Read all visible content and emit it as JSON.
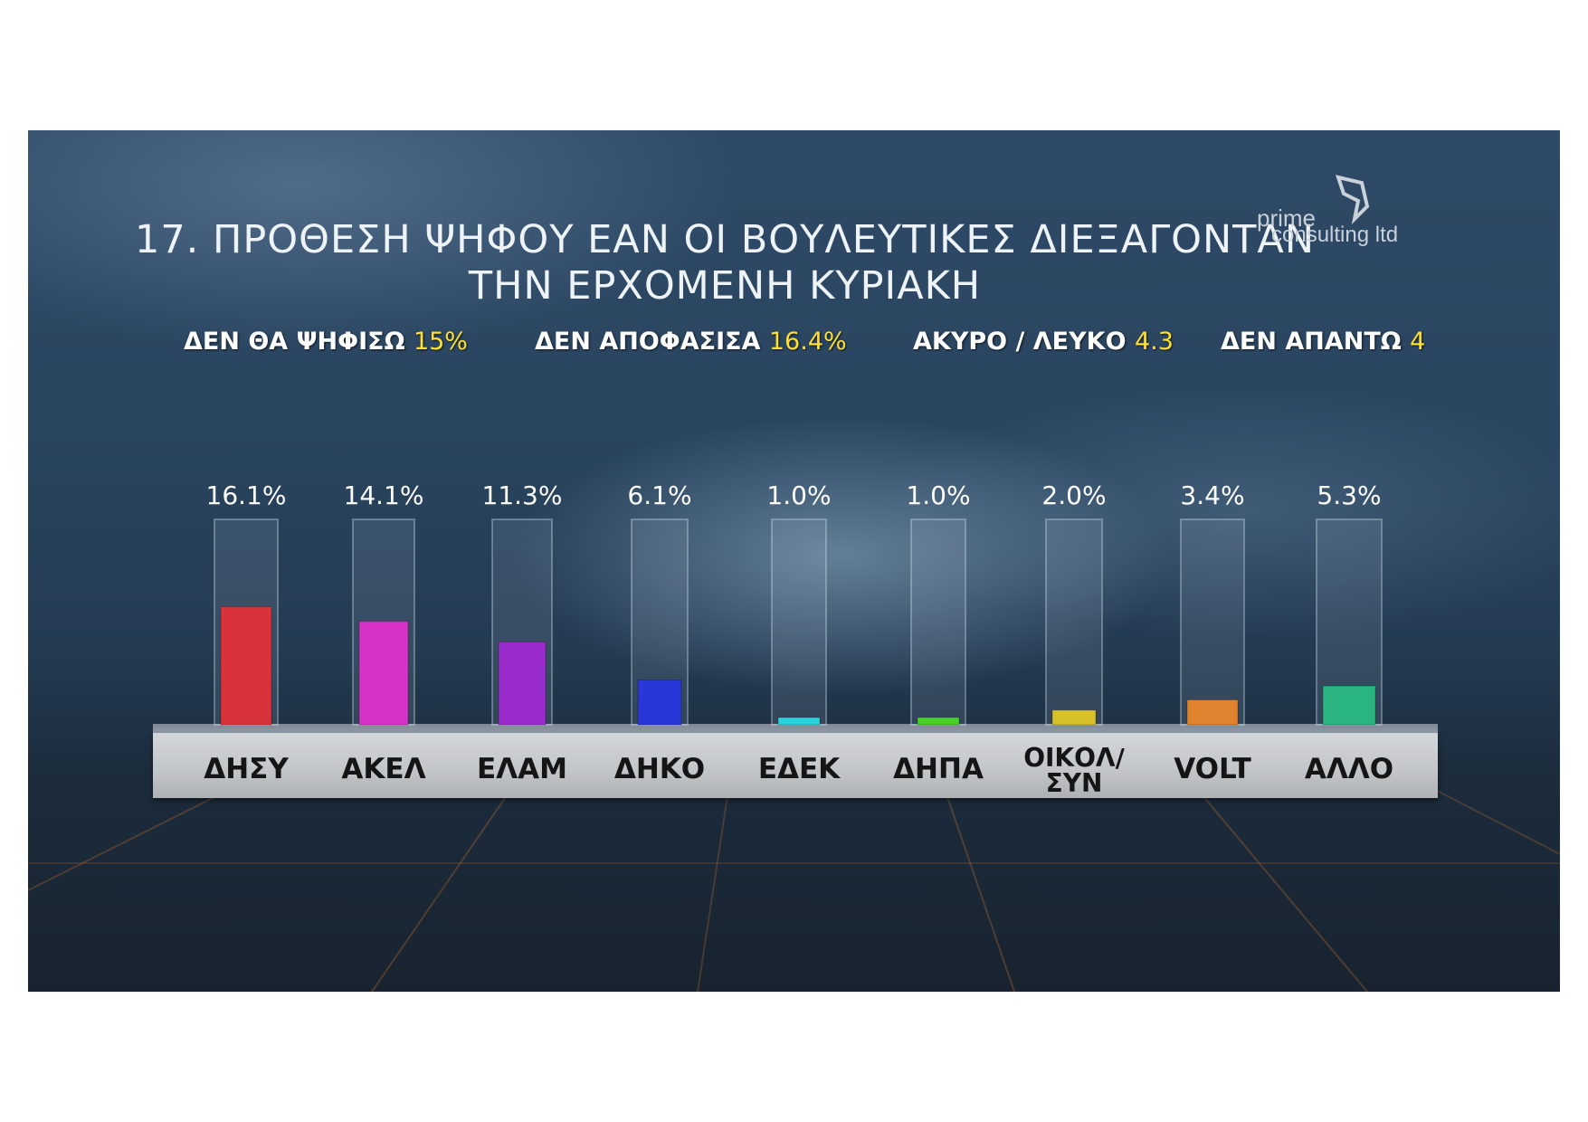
{
  "title_line1": "17. ΠΡΟΘΕΣΗ ΨΗΦΟΥ ΕΑΝ ΟΙ ΒΟΥΛΕΥΤΙΚΕΣ ΔΙΕΞΑΓΟΝΤΑΝ",
  "title_line2": "ΤΗΝ ΕΡΧΟΜΕΝΗ ΚΥΡΙΑΚΗ",
  "logo": {
    "line1": "prime",
    "line2": "consulting ltd"
  },
  "stats": [
    {
      "label": "ΔΕΝ ΘΑ ΨΗΦΙΣΩ",
      "value": "15%"
    },
    {
      "label": "ΔΕΝ ΑΠΟΦΑΣΙΣΑ",
      "value": "16.4%"
    },
    {
      "label": "ΑΚΥΡΟ / ΛΕΥΚΟ",
      "value": "4.3"
    },
    {
      "label": "ΔΕΝ ΑΠΑΝΤΩ",
      "value": "4"
    }
  ],
  "colors": {
    "value_highlight": "#ffe030"
  },
  "chart_data": {
    "type": "bar",
    "categories": [
      "ΔΗΣΥ",
      "ΑΚΕΛ",
      "ΕΛΑΜ",
      "ΔΗΚΟ",
      "ΕΔΕΚ",
      "ΔΗΠΑ",
      "ΟΙΚΟΛ/ ΣΥΝ",
      "VOLT",
      "ΑΛΛΟ"
    ],
    "values": [
      16.1,
      14.1,
      11.3,
      6.1,
      1.0,
      1.0,
      2.0,
      3.4,
      5.3
    ],
    "value_labels": [
      "16.1%",
      "14.1%",
      "11.3%",
      "6.1%",
      "1.0%",
      "1.0%",
      "2.0%",
      "3.4%",
      "5.3%"
    ],
    "bar_colors": [
      "#d8323a",
      "#d832c8",
      "#9a2ccc",
      "#2838d8",
      "#2ad0dc",
      "#48d02a",
      "#d8c02a",
      "#e0822e",
      "#2ab482"
    ],
    "ylim": [
      0,
      28
    ]
  }
}
